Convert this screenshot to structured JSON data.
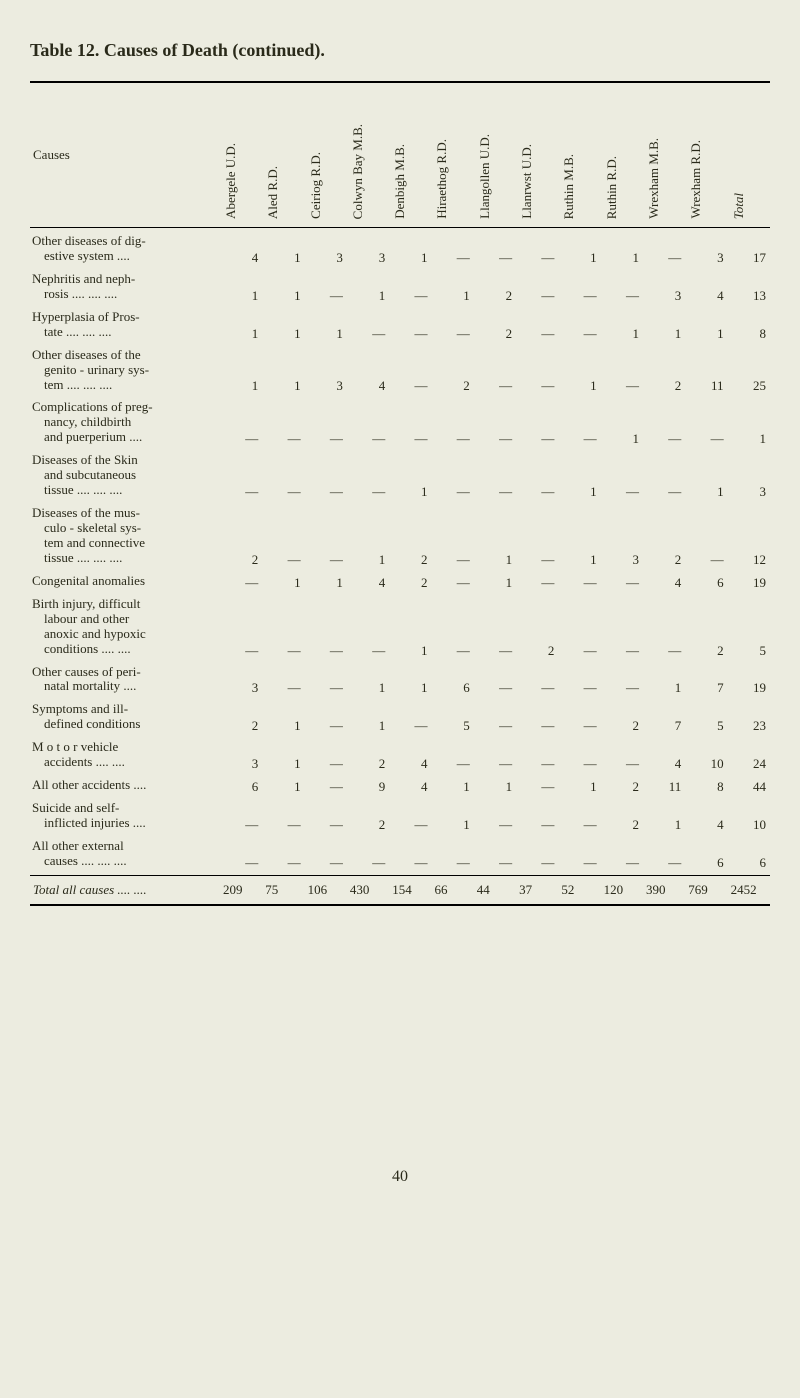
{
  "title": "Table 12. Causes of Death (continued).",
  "headers": {
    "causes": "Causes",
    "cols": [
      "Abergele U.D.",
      "Aled R.D.",
      "Ceiriog R.D.",
      "Colwyn Bay M.B.",
      "Denbigh M.B.",
      "Hiraethog R.D.",
      "Llangollen U.D.",
      "Llanrwst U.D.",
      "Ruthin M.B.",
      "Ruthin R.D.",
      "Wrexham M.B.",
      "Wrexham R.D.",
      "Total"
    ]
  },
  "rows": [
    {
      "cause": "Other diseases of dig-\nestive system ....",
      "vals": [
        "4",
        "1",
        "3",
        "3",
        "1",
        "—",
        "—",
        "—",
        "1",
        "1",
        "—",
        "3",
        "17"
      ]
    },
    {
      "cause": "Nephritis and neph-\nrosis .... .... ....",
      "vals": [
        "1",
        "1",
        "—",
        "1",
        "—",
        "1",
        "2",
        "—",
        "—",
        "—",
        "3",
        "4",
        "13"
      ]
    },
    {
      "cause": "Hyperplasia of Pros-\ntate .... .... ....",
      "vals": [
        "1",
        "1",
        "1",
        "—",
        "—",
        "—",
        "2",
        "—",
        "—",
        "1",
        "1",
        "1",
        "8"
      ]
    },
    {
      "cause": "Other diseases of the\ngenito - urinary sys-\ntem .... .... ....",
      "vals": [
        "1",
        "1",
        "3",
        "4",
        "—",
        "2",
        "—",
        "—",
        "1",
        "—",
        "2",
        "11",
        "25"
      ]
    },
    {
      "cause": "Complications of preg-\nnancy, childbirth\nand puerperium ....",
      "vals": [
        "—",
        "—",
        "—",
        "—",
        "—",
        "—",
        "—",
        "—",
        "—",
        "1",
        "—",
        "—",
        "1"
      ]
    },
    {
      "cause": "Diseases of the Skin\nand subcutaneous\ntissue .... .... ....",
      "vals": [
        "—",
        "—",
        "—",
        "—",
        "1",
        "—",
        "—",
        "—",
        "1",
        "—",
        "—",
        "1",
        "3"
      ]
    },
    {
      "cause": "Diseases of the mus-\nculo - skeletal sys-\ntem and connective\ntissue .... .... ....",
      "vals": [
        "2",
        "—",
        "—",
        "1",
        "2",
        "—",
        "1",
        "—",
        "1",
        "3",
        "2",
        "—",
        "12"
      ]
    },
    {
      "cause": "Congenital anomalies",
      "vals": [
        "—",
        "1",
        "1",
        "4",
        "2",
        "—",
        "1",
        "—",
        "—",
        "—",
        "4",
        "6",
        "19"
      ]
    },
    {
      "cause": "Birth injury, difficult\nlabour and other\nanoxic and hypoxic\nconditions .... ....",
      "vals": [
        "—",
        "—",
        "—",
        "—",
        "1",
        "—",
        "—",
        "2",
        "—",
        "—",
        "—",
        "2",
        "5"
      ]
    },
    {
      "cause": "Other causes of peri-\nnatal mortality ....",
      "vals": [
        "3",
        "—",
        "—",
        "1",
        "1",
        "6",
        "—",
        "—",
        "—",
        "—",
        "1",
        "7",
        "19"
      ]
    },
    {
      "cause": "Symptoms and ill-\ndefined conditions",
      "vals": [
        "2",
        "1",
        "—",
        "1",
        "—",
        "5",
        "—",
        "—",
        "—",
        "2",
        "7",
        "5",
        "23"
      ]
    },
    {
      "cause": "M o t o r  vehicle\naccidents .... ....",
      "vals": [
        "3",
        "1",
        "—",
        "2",
        "4",
        "—",
        "—",
        "—",
        "—",
        "—",
        "4",
        "10",
        "24"
      ]
    },
    {
      "cause": "All other accidents ....",
      "vals": [
        "6",
        "1",
        "—",
        "9",
        "4",
        "1",
        "1",
        "—",
        "1",
        "2",
        "11",
        "8",
        "44"
      ]
    },
    {
      "cause": "Suicide and self-\ninflicted injuries ....",
      "vals": [
        "—",
        "—",
        "—",
        "2",
        "—",
        "1",
        "—",
        "—",
        "—",
        "2",
        "1",
        "4",
        "10"
      ]
    },
    {
      "cause": "All other external\ncauses .... .... ....",
      "vals": [
        "—",
        "—",
        "—",
        "—",
        "—",
        "—",
        "—",
        "—",
        "—",
        "—",
        "—",
        "6",
        "6"
      ]
    }
  ],
  "total": {
    "label": "Total all causes .... ....",
    "vals": [
      "209",
      "75",
      "106",
      "430",
      "154",
      "66",
      "44",
      "37",
      "52",
      "120",
      "390",
      "769",
      "2452"
    ]
  },
  "page": "40"
}
